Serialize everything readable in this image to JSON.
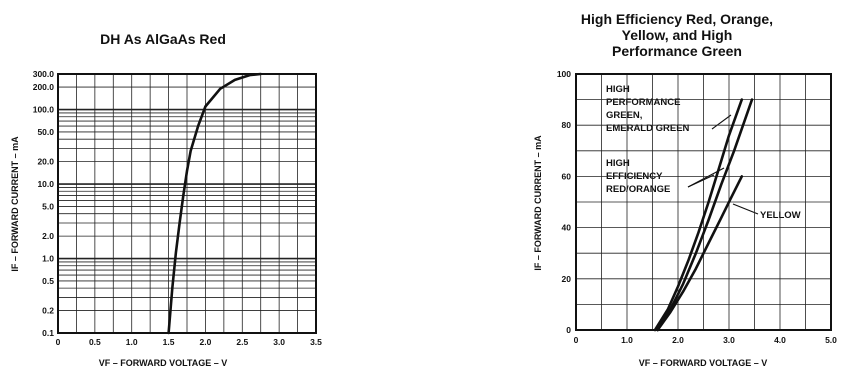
{
  "chart_data": [
    {
      "type": "line",
      "title": "DH As AlGaAs Red",
      "xlabel": "VF – FORWARD VOLTAGE – V",
      "ylabel": "IF – FORWARD CURRENT – mA",
      "xlim": [
        0,
        3.5
      ],
      "ylim": [
        0.1,
        300
      ],
      "yscale": "log",
      "grid": true,
      "x_ticks": [
        "0",
        "0.5",
        "1.0",
        "1.5",
        "2.0",
        "2.5",
        "3.0",
        "3.5"
      ],
      "y_ticks": [
        "300.0",
        "200.0",
        "100.0",
        "50.0",
        "20.0",
        "10.0",
        "5.0",
        "2.0",
        "1.0",
        "0.5",
        "0.2",
        "0.1"
      ],
      "series": [
        {
          "x": [
            1.5,
            1.55,
            1.6,
            1.65,
            1.7,
            1.75,
            1.8,
            1.9,
            2.0,
            2.2,
            2.4,
            2.6,
            2.75
          ],
          "y": [
            0.1,
            0.4,
            1.2,
            3.0,
            7.0,
            15,
            28,
            60,
            110,
            190,
            250,
            290,
            300
          ]
        }
      ]
    },
    {
      "type": "line",
      "title": "High Efficiency Red, Orange, Yellow, and High Performance Green",
      "title_lines": [
        "High Efficiency Red, Orange,",
        "Yellow, and High",
        "Performance Green"
      ],
      "xlabel": "VF – FORWARD VOLTAGE – V",
      "ylabel": "IF – FORWARD CURRENT – mA",
      "xlim": [
        0,
        5.0
      ],
      "ylim": [
        0,
        100
      ],
      "grid": true,
      "x_ticks": [
        "0",
        "1.0",
        "2.0",
        "3.0",
        "4.0",
        "5.0"
      ],
      "y_ticks": [
        "0",
        "20",
        "40",
        "60",
        "80",
        "100"
      ],
      "annotations": [
        {
          "lines": [
            "HIGH",
            "PERFORMANCE",
            "GREEN,",
            "EMERALD GREEN"
          ]
        },
        {
          "lines": [
            "HIGH",
            "EFFICIENCY",
            "RED/ORANGE"
          ]
        },
        {
          "lines": [
            "YELLOW"
          ]
        }
      ],
      "series": [
        {
          "x": [
            1.55,
            1.8,
            2.0,
            2.2,
            2.4,
            2.6,
            2.8,
            3.0,
            3.25
          ],
          "y": [
            0,
            8,
            17,
            27,
            38,
            50,
            63,
            76,
            90
          ]
        },
        {
          "x": [
            1.6,
            1.85,
            2.1,
            2.35,
            2.6,
            2.85,
            3.1,
            3.45
          ],
          "y": [
            0,
            8,
            18,
            30,
            43,
            57,
            70,
            90
          ]
        },
        {
          "x": [
            1.6,
            1.85,
            2.1,
            2.35,
            2.6,
            2.85,
            3.05,
            3.25
          ],
          "y": [
            0,
            7,
            15,
            24,
            34,
            44,
            52,
            60
          ]
        }
      ]
    }
  ]
}
